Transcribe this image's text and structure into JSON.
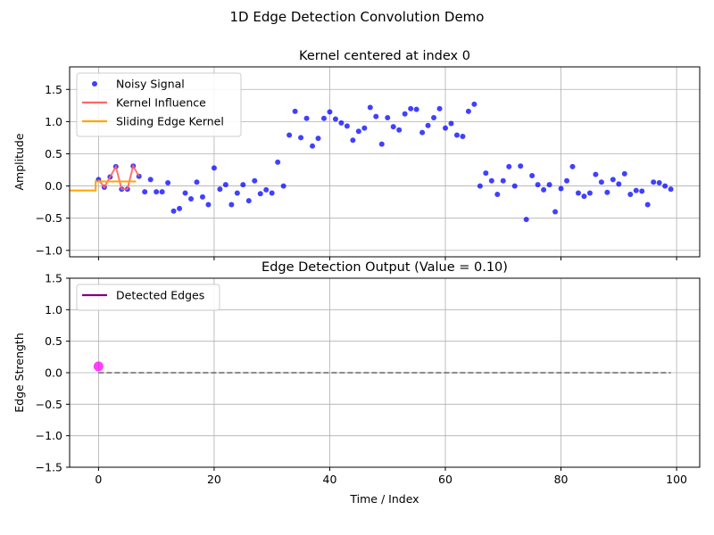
{
  "figure": {
    "suptitle": "1D Edge Detection Convolution Demo"
  },
  "chart_data": [
    {
      "type": "scatter",
      "title": "Kernel centered at index 0",
      "xlabel": "",
      "ylabel": "Amplitude",
      "xlim": [
        -5,
        104
      ],
      "ylim": [
        -1.1,
        1.85
      ],
      "xticks": [
        0,
        20,
        40,
        60,
        80,
        100
      ],
      "yticks": [
        -1.0,
        -0.5,
        0.0,
        0.5,
        1.0,
        1.5
      ],
      "ytick_labels": [
        "−1.0",
        "−0.5",
        "0.0",
        "0.5",
        "1.0",
        "1.5"
      ],
      "show_xtick_labels": false,
      "grid": true,
      "legend_position": "upper-left",
      "series": [
        {
          "name": "Noisy Signal",
          "kind": "scatter",
          "color": "#0000ff",
          "x": [
            0,
            1,
            2,
            3,
            4,
            5,
            6,
            7,
            8,
            9,
            10,
            11,
            12,
            13,
            14,
            15,
            16,
            17,
            18,
            19,
            20,
            21,
            22,
            23,
            24,
            25,
            26,
            27,
            28,
            29,
            30,
            31,
            32,
            33,
            34,
            35,
            36,
            37,
            38,
            39,
            40,
            41,
            42,
            43,
            44,
            45,
            46,
            47,
            48,
            49,
            50,
            51,
            52,
            53,
            54,
            55,
            56,
            57,
            58,
            59,
            60,
            61,
            62,
            63,
            64,
            65,
            66,
            67,
            68,
            69,
            70,
            71,
            72,
            73,
            74,
            75,
            76,
            77,
            78,
            79,
            80,
            81,
            82,
            83,
            84,
            85,
            86,
            87,
            88,
            89,
            90,
            91,
            92,
            93,
            94,
            95,
            96,
            97,
            98,
            99
          ],
          "y": [
            0.1,
            -0.02,
            0.14,
            0.3,
            -0.05,
            -0.05,
            0.31,
            0.15,
            -0.09,
            0.1,
            -0.09,
            -0.09,
            0.05,
            -0.39,
            -0.35,
            -0.11,
            -0.2,
            0.06,
            -0.17,
            -0.29,
            0.28,
            -0.05,
            0.02,
            -0.29,
            -0.11,
            0.02,
            -0.23,
            0.08,
            -0.12,
            -0.06,
            -0.11,
            0.37,
            0.0,
            0.79,
            1.16,
            0.75,
            1.05,
            0.62,
            0.74,
            1.05,
            1.15,
            1.04,
            0.98,
            0.93,
            0.71,
            0.85,
            0.9,
            1.22,
            1.08,
            0.65,
            1.06,
            0.92,
            0.87,
            1.12,
            1.2,
            1.19,
            0.83,
            0.94,
            1.06,
            1.2,
            0.9,
            0.97,
            0.79,
            0.77,
            1.16,
            1.27,
            0.0,
            0.2,
            0.08,
            -0.13,
            0.08,
            0.3,
            0.0,
            0.31,
            -0.52,
            0.16,
            0.02,
            -0.06,
            0.02,
            -0.4,
            -0.04,
            0.08,
            0.3,
            -0.11,
            -0.16,
            -0.11,
            0.18,
            0.06,
            -0.1,
            0.1,
            0.03,
            0.19,
            -0.13,
            -0.07,
            -0.08,
            -0.29,
            0.06,
            0.05,
            0.0,
            -0.05
          ]
        },
        {
          "name": "Kernel Influence",
          "kind": "line",
          "color": "#ff6666",
          "x": [
            0,
            1,
            2,
            3,
            4,
            5,
            6,
            7
          ],
          "y": [
            0.1,
            -0.02,
            0.14,
            0.3,
            -0.05,
            -0.05,
            0.31,
            0.15
          ]
        },
        {
          "name": "Sliding Edge Kernel",
          "kind": "step",
          "color": "#ffa500",
          "x": [
            -5,
            -0.5,
            -0.5,
            6.5
          ],
          "y": [
            -0.07,
            -0.07,
            0.07,
            0.07
          ]
        }
      ]
    },
    {
      "type": "line",
      "title": "Edge Detection Output (Value = 0.10)",
      "xlabel": "Time / Index",
      "ylabel": "Edge Strength",
      "xlim": [
        -5,
        104
      ],
      "ylim": [
        -1.5,
        1.5
      ],
      "xticks": [
        0,
        20,
        40,
        60,
        80,
        100
      ],
      "xtick_labels": [
        "0",
        "20",
        "40",
        "60",
        "80",
        "100"
      ],
      "yticks": [
        -1.5,
        -1.0,
        -0.5,
        0.0,
        0.5,
        1.0,
        1.5
      ],
      "ytick_labels": [
        "−1.5",
        "−1.0",
        "−0.5",
        "0.0",
        "0.5",
        "1.0",
        "1.5"
      ],
      "grid": true,
      "legend_position": "upper-left",
      "series": [
        {
          "name": "Detected Edges",
          "kind": "line",
          "color": "#800080",
          "x": [
            0
          ],
          "y": [
            0.1
          ]
        },
        {
          "kind": "dashed-line",
          "color": "#666666",
          "x": [
            0,
            99
          ],
          "y": [
            0.0,
            0.0
          ]
        },
        {
          "kind": "marker",
          "color": "#ff00ff",
          "x": [
            0
          ],
          "y": [
            0.1
          ]
        }
      ]
    }
  ]
}
